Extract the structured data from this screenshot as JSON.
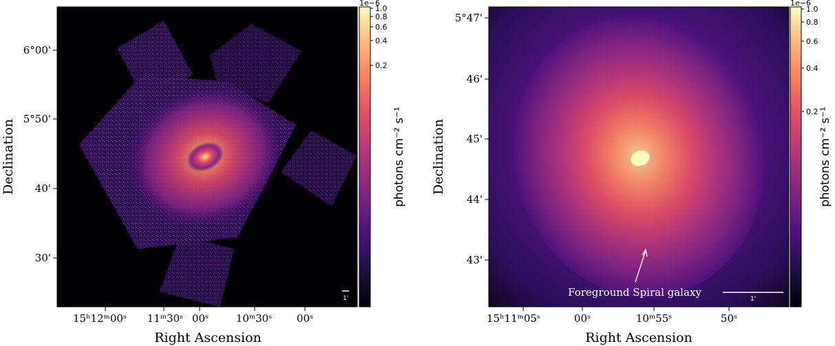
{
  "colormap": [
    "#000004",
    "#1c1044",
    "#4f127b",
    "#812581",
    "#b5367a",
    "#e55064",
    "#fb8761",
    "#fec287",
    "#fcfdbf"
  ],
  "left_panel": {
    "ylabel": "Declination",
    "xlabel": "Right Ascension",
    "yticks": [
      "6°00'",
      "5°50'",
      "40'",
      "30'"
    ],
    "xticks": [
      "15ʰ12ᵐ00ˢ",
      "11ᵐ30ˢ",
      "00ˢ",
      "10ᵐ30ˢ",
      "00ˢ"
    ],
    "colorbar": {
      "exponent": "1e−6",
      "ticks": [
        "1.0",
        "0.8",
        "0.6",
        "0.4",
        "0.2"
      ],
      "label": "photons cm⁻² s⁻¹"
    },
    "scalebar_label": "1'"
  },
  "right_panel": {
    "ylabel": "Declination",
    "xlabel": "Right Ascension",
    "yticks": [
      "5°47'",
      "46'",
      "45'",
      "44'",
      "43'"
    ],
    "xticks": [
      "15ʰ11ᵐ05ˢ",
      "00ˢ",
      "10ᵐ55ˢ",
      "50ˢ"
    ],
    "colorbar": {
      "exponent": "1e−6",
      "ticks": [
        "1.0",
        "0.8",
        "0.6",
        "0.4",
        "0.2"
      ],
      "label": "photons cm⁻² s⁻¹"
    },
    "annotation": "Foreground Spiral galaxy",
    "scalebar_label": "1'"
  }
}
